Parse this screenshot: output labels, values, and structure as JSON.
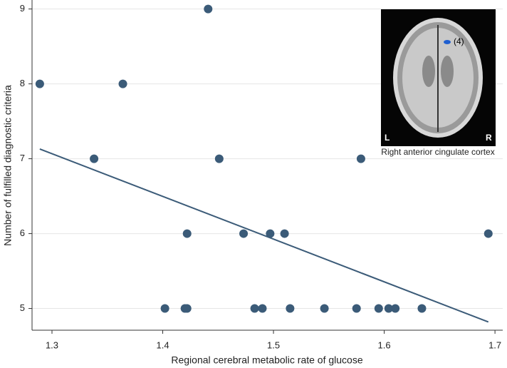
{
  "chart_data": {
    "type": "scatter",
    "x_label": "Regional cerebral metabolic rate of glucose",
    "y_label": "Number of fulfilled diagnostic criteria",
    "xlim": [
      1.282,
      1.707
    ],
    "ylim": [
      4.71,
      9.12
    ],
    "xticks": [
      1.3,
      1.4,
      1.5,
      1.6,
      1.7
    ],
    "yticks": [
      5,
      6,
      7,
      8,
      9
    ],
    "grid": true,
    "series": [
      {
        "kind": "points",
        "color": "#3b5b78",
        "x": [
          1.289,
          1.338,
          1.364,
          1.402,
          1.42,
          1.422,
          1.422,
          1.441,
          1.451,
          1.473,
          1.483,
          1.49,
          1.497,
          1.51,
          1.515,
          1.546,
          1.575,
          1.579,
          1.595,
          1.604,
          1.61,
          1.634,
          1.694
        ],
        "values": [
          8,
          7,
          8,
          5,
          5,
          6,
          5,
          9,
          7,
          6,
          5,
          5,
          6,
          6,
          5,
          5,
          5,
          7,
          5,
          5,
          5,
          5,
          6
        ]
      },
      {
        "kind": "fit",
        "color": "#3b5b78",
        "x": [
          1.289,
          1.694
        ],
        "values": [
          7.13,
          4.82
        ]
      }
    ],
    "inset": {
      "marker": "(4)",
      "left": "L",
      "right": "R",
      "caption": "Right anterior cingulate cortex"
    }
  }
}
